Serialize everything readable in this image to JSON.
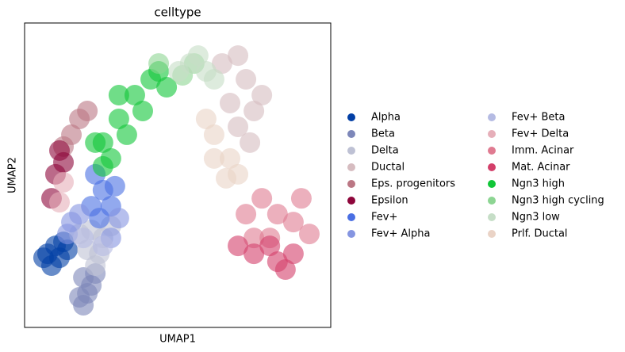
{
  "chart_data": {
    "type": "scatter",
    "title": "celltype",
    "x_label": "UMAP1",
    "y_label": "UMAP2",
    "xlim": [
      0,
      100
    ],
    "ylim": [
      0,
      100
    ],
    "grid": false,
    "legend": "right",
    "series": [
      {
        "name": "Alpha",
        "color": "#023fa5",
        "x": [
          7.5,
          10.1,
          12.7,
          8.8,
          6.2,
          11.4,
          14.0
        ],
        "values": [
          24.2,
          26.8,
          28.1,
          20.3,
          22.9,
          22.9,
          25.5
        ]
      },
      {
        "name": "Beta",
        "color": "#7d87b9",
        "x": [
          19.2,
          20.5,
          19.2,
          21.8,
          17.9,
          23.1
        ],
        "values": [
          16.4,
          11.2,
          7.3,
          13.8,
          9.9,
          17.7
        ]
      },
      {
        "name": "Delta",
        "color": "#bec1d4",
        "x": [
          21.8,
          25.6,
          20.5,
          24.4,
          28.2,
          17.9,
          23.1
        ],
        "values": [
          32.0,
          29.4,
          25.5,
          24.2,
          33.3,
          30.7,
          20.3
        ]
      },
      {
        "name": "Ductal",
        "color": "#d6bcc0",
        "x": [
          69.7,
          72.3,
          67.1,
          74.9,
          69.7,
          64.5,
          77.5,
          73.6
        ],
        "values": [
          89.3,
          81.5,
          73.7,
          71.1,
          65.9,
          86.7,
          76.3,
          60.7
        ]
      },
      {
        "name": "Eps. progenitors",
        "color": "#bb7784",
        "x": [
          17.9,
          15.3,
          20.5,
          12.7
        ],
        "values": [
          68.5,
          63.3,
          71.1,
          59.4
        ]
      },
      {
        "name": "Epsilon",
        "color": "#8e063b",
        "x": [
          11.4,
          10.1,
          8.8,
          12.7
        ],
        "values": [
          58.1,
          50.3,
          42.4,
          54.2
        ]
      },
      {
        "name": "Fev+",
        "color": "#4a6fe3",
        "x": [
          23.1,
          25.6,
          28.2,
          21.8,
          24.4,
          29.5
        ],
        "values": [
          50.3,
          45.1,
          39.8,
          39.8,
          35.9,
          46.4
        ]
      },
      {
        "name": "Fev+ Alpha",
        "color": "#8595e1",
        "x": [
          15.3,
          17.9,
          14.0,
          28.2,
          30.8
        ],
        "values": [
          34.6,
          37.2,
          30.7,
          29.4,
          35.9
        ]
      },
      {
        "name": "Fev+ Beta",
        "color": "#b5bbe3",
        "x": [
          19.2,
          25.6
        ],
        "values": [
          29.4,
          26.8
        ]
      },
      {
        "name": "Fev+ Delta",
        "color": "#e6afb9",
        "x": [
          12.7,
          11.4
        ],
        "values": [
          47.7,
          41.1
        ]
      },
      {
        "name": "Imm. Acinar",
        "color": "#e07b91",
        "x": [
          77.5,
          82.6,
          87.8,
          93.0,
          72.3,
          80.1,
          90.4,
          74.9
        ],
        "values": [
          42.4,
          37.2,
          34.6,
          30.7,
          37.2,
          29.4,
          42.4,
          29.4
        ]
      },
      {
        "name": "Mat. Acinar",
        "color": "#d33f6a",
        "x": [
          74.9,
          82.6,
          87.8,
          80.1,
          85.2,
          69.7
        ],
        "values": [
          24.2,
          21.6,
          24.2,
          26.8,
          19.0,
          26.8
        ]
      },
      {
        "name": "Ngn3 high",
        "color": "#11c638",
        "x": [
          25.6,
          30.8,
          36.0,
          41.2,
          43.8,
          28.2,
          33.4,
          38.6,
          25.6,
          46.4,
          30.8,
          23.1
        ],
        "values": [
          60.7,
          68.5,
          76.3,
          81.5,
          84.1,
          55.5,
          63.3,
          71.1,
          52.9,
          78.9,
          76.3,
          60.7
        ]
      },
      {
        "name": "Ngn3 high cycling",
        "color": "#8dd593",
        "x": [
          51.6,
          55.4,
          43.8
        ],
        "values": [
          82.8,
          86.7,
          86.7
        ]
      },
      {
        "name": "Ngn3 low",
        "color": "#c6dec7",
        "x": [
          54.1,
          59.3,
          61.9,
          56.7,
          50.3
        ],
        "values": [
          86.7,
          84.1,
          81.5,
          89.3,
          84.1
        ]
      },
      {
        "name": "Prlf. Ductal",
        "color": "#ead3c6",
        "x": [
          61.9,
          67.1,
          69.7,
          61.9,
          59.3,
          65.8
        ],
        "values": [
          63.3,
          55.5,
          50.3,
          55.5,
          68.5,
          49.0
        ]
      }
    ]
  }
}
